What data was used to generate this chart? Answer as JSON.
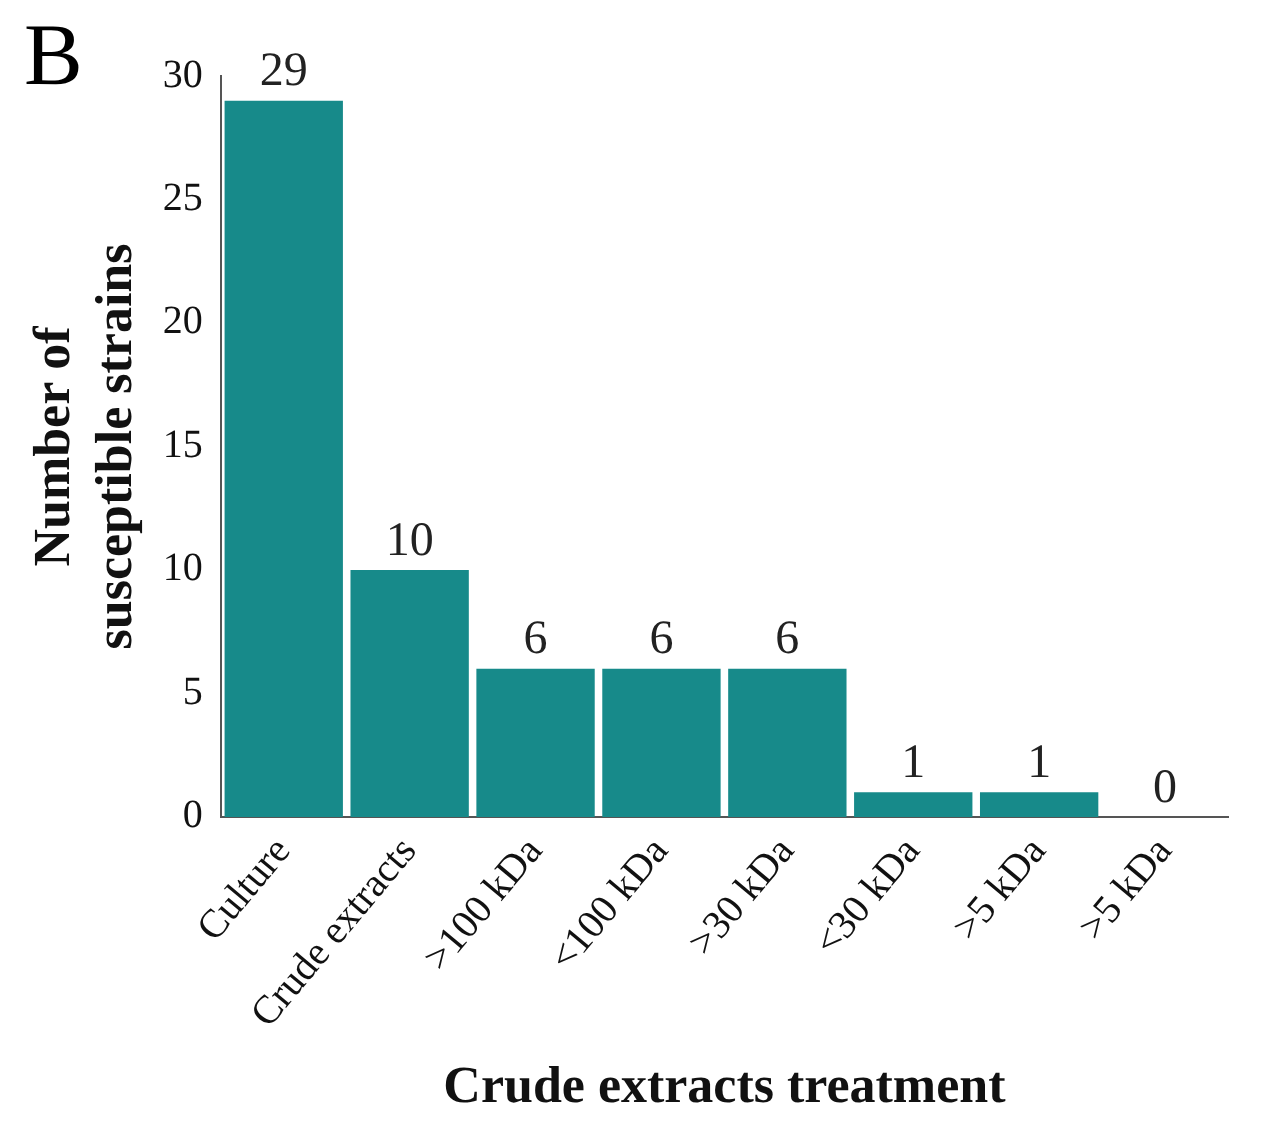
{
  "chart_data": {
    "type": "bar",
    "title": "B",
    "xlabel": "Crude extracts treatment",
    "ylabel": "Number of\nsusceptible strains",
    "categories": [
      "Culture",
      "Crude extracts",
      ">100 kDa",
      "<100 kDa",
      ">30 kDa",
      "<30 kDa",
      ">5 kDa",
      ">5 kDa"
    ],
    "values": [
      29,
      10,
      6,
      6,
      6,
      1,
      1,
      0
    ],
    "color": "#178a8a",
    "ylim": [
      0,
      30
    ],
    "yticks": [
      0,
      5,
      10,
      15,
      20,
      25,
      30
    ],
    "grid": false,
    "legend": false,
    "data_labels": true
  }
}
